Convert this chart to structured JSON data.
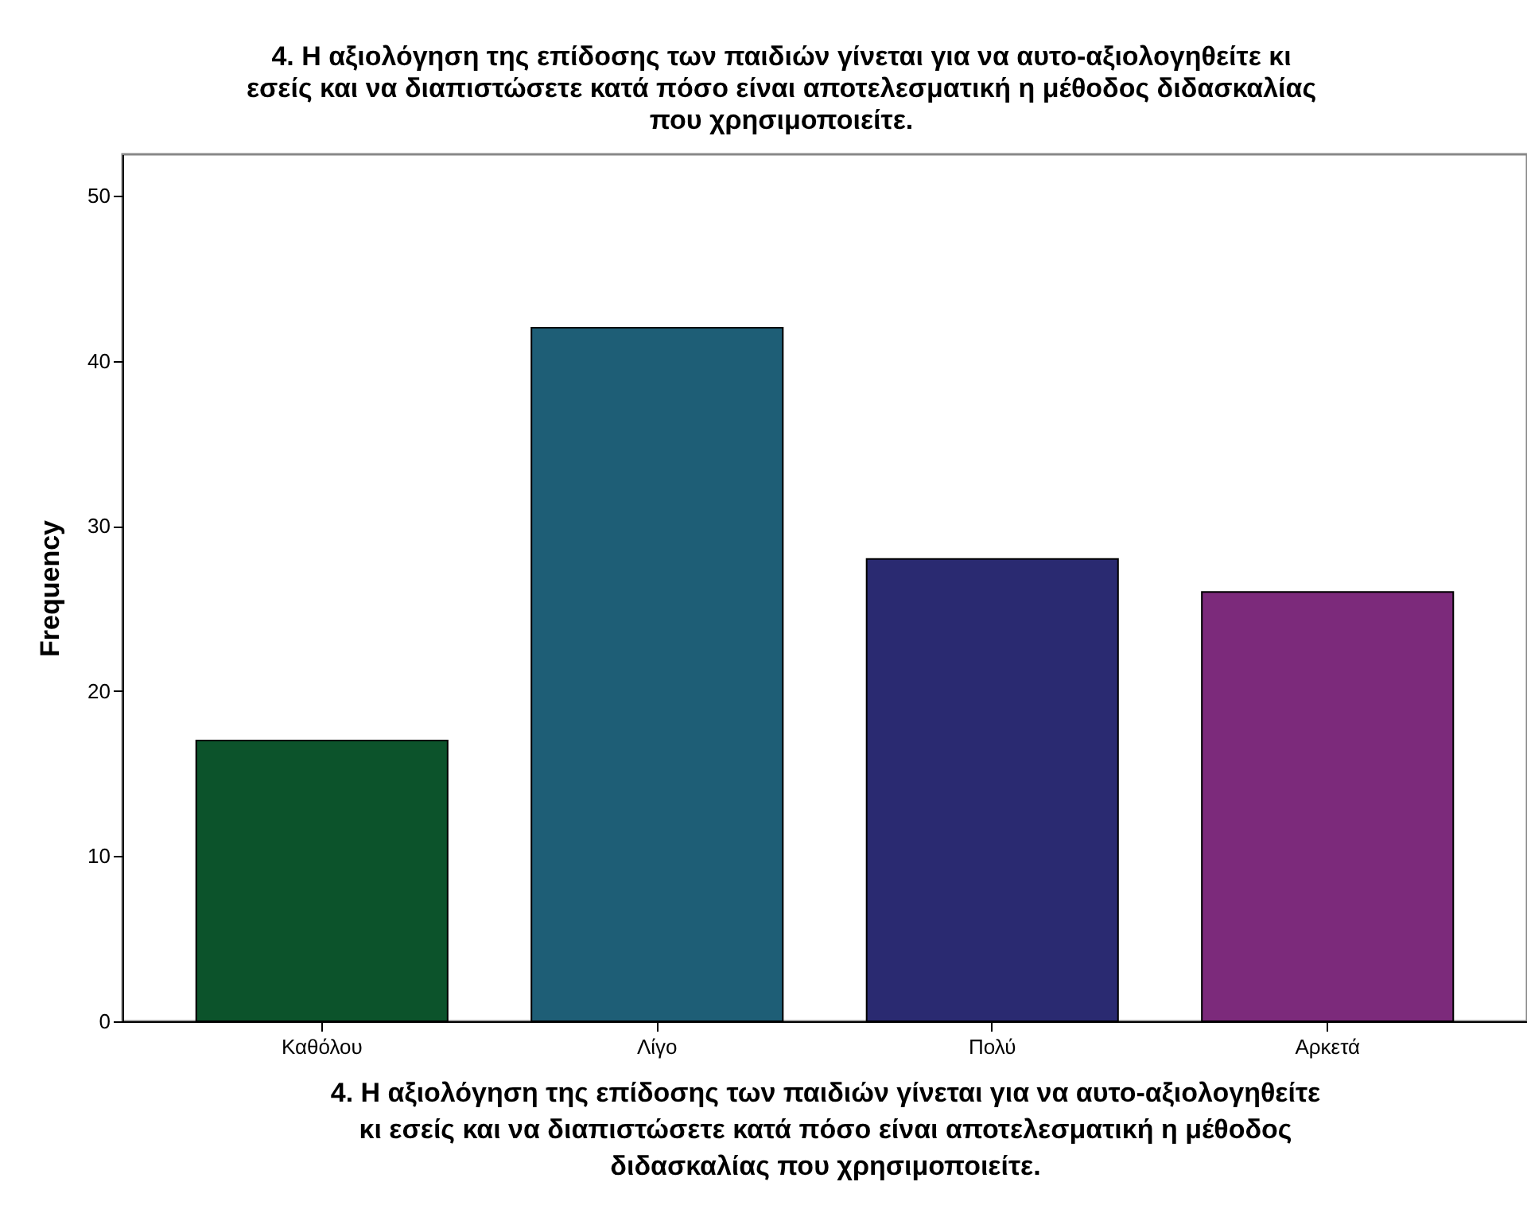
{
  "chart_data": {
    "type": "bar",
    "title": "4. Η αξιολόγηση της επίδοσης των παιδιών γίνεται για να αυτο-αξιολογηθείτε κι εσείς και να διαπιστώσετε κατά πόσο είναι αποτελεσματική η μέθοδος διδασκαλίας που χρησιμοποιείτε.",
    "xlabel": "4. Η αξιολόγηση της επίδοσης των παιδιών γίνεται για να αυτο-αξιολογηθείτε κι εσείς και να διαπιστώσετε κατά πόσο είναι αποτελεσματική η μέθοδος διδασκαλίας που χρησιμοποιείτε.",
    "ylabel": "Frequency",
    "categories": [
      "Καθόλου",
      "Λίγο",
      "Πολύ",
      "Αρκετά"
    ],
    "values": [
      17,
      42,
      28,
      26
    ],
    "colors": [
      "#0c532b",
      "#1e5e76",
      "#2a2a71",
      "#7c2a7b"
    ],
    "ylim": [
      0,
      52.5
    ],
    "yticks": [
      0,
      10,
      20,
      30,
      40,
      50
    ],
    "grid": false
  }
}
